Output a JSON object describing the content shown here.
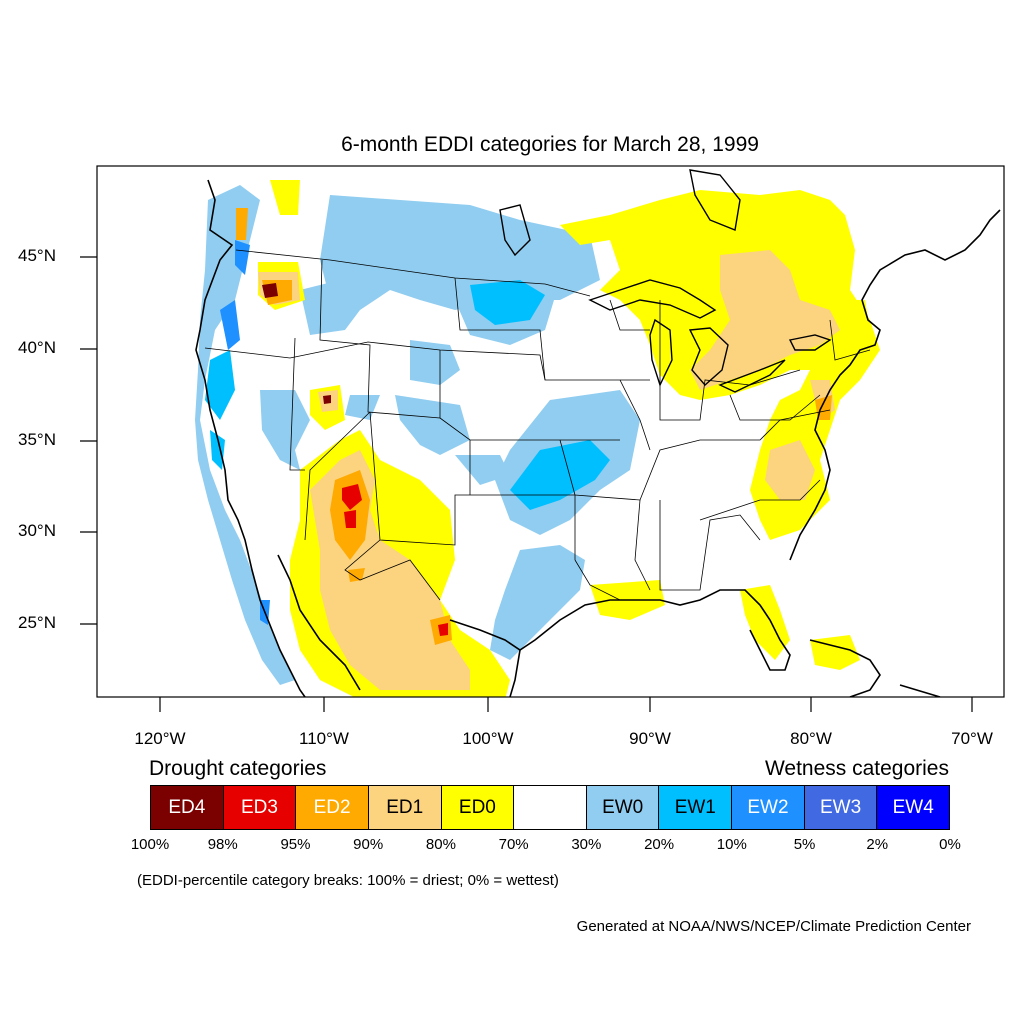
{
  "title": "6-month EDDI categories for March 28, 1999",
  "y_ticks": [
    "45°N",
    "40°N",
    "35°N",
    "30°N",
    "25°N"
  ],
  "x_ticks": [
    "120°W",
    "110°W",
    "100°W",
    "90°W",
    "80°W",
    "70°W"
  ],
  "legend": {
    "left_heading": "Drought categories",
    "right_heading": "Wetness categories",
    "categories": [
      {
        "label": "ED4",
        "color": "#7b0000",
        "text_color": "#ffffff"
      },
      {
        "label": "ED3",
        "color": "#e60000",
        "text_color": "#ffffff"
      },
      {
        "label": "ED2",
        "color": "#ffaa00",
        "text_color": "#ffffff"
      },
      {
        "label": "ED1",
        "color": "#fcd37f",
        "text_color": "#000000"
      },
      {
        "label": "ED0",
        "color": "#ffff00",
        "text_color": "#000000"
      },
      {
        "label": "",
        "color": "#ffffff",
        "text_color": "#000000"
      },
      {
        "label": "EW0",
        "color": "#90cdf0",
        "text_color": "#000000"
      },
      {
        "label": "EW1",
        "color": "#00bfff",
        "text_color": "#000000"
      },
      {
        "label": "EW2",
        "color": "#1e90ff",
        "text_color": "#ffffff"
      },
      {
        "label": "EW3",
        "color": "#4169e1",
        "text_color": "#ffffff"
      },
      {
        "label": "EW4",
        "color": "#0000ff",
        "text_color": "#ffffff"
      }
    ],
    "breaks": [
      "100%",
      "98%",
      "95%",
      "90%",
      "80%",
      "70%",
      "30%",
      "20%",
      "10%",
      "5%",
      "2%",
      "0%"
    ]
  },
  "note": "(EDDI-percentile category breaks: 100% = driest; 0% = wettest)",
  "credit": "Generated at NOAA/NWS/NCEP/Climate Prediction Center"
}
